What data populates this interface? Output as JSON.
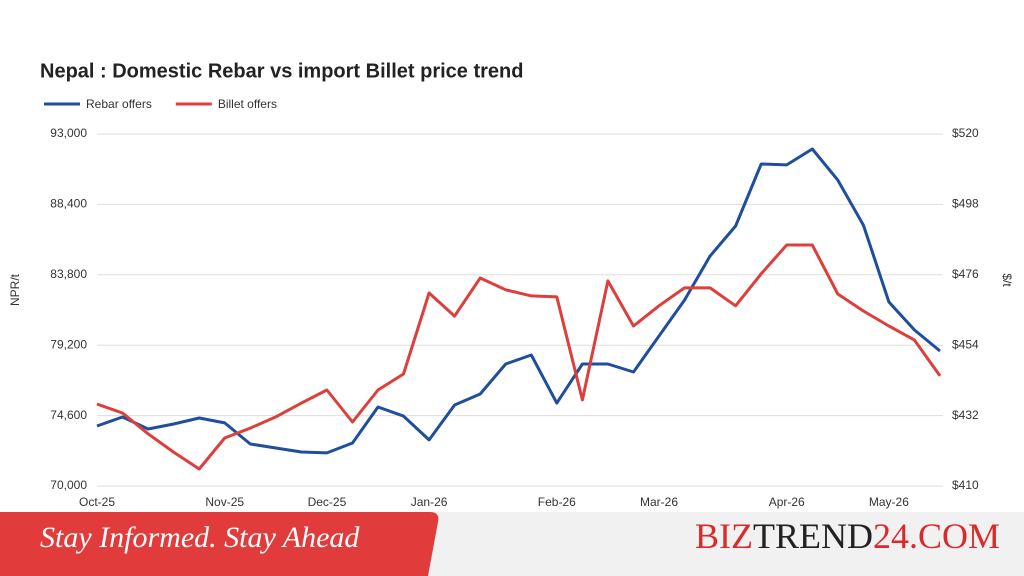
{
  "chart_data": {
    "type": "line",
    "title": "Nepal : Domestic Rebar vs import Billet price trend",
    "ylabel": "NPR/t",
    "y2label": "$/t",
    "categories": [
      "Oct-25",
      null,
      null,
      null,
      null,
      "Nov-25",
      null,
      null,
      null,
      "Dec-25",
      null,
      null,
      null,
      "Jan-26",
      null,
      null,
      null,
      null,
      "Feb-26",
      null,
      null,
      null,
      "Mar-26",
      null,
      null,
      null,
      null,
      "Apr-26",
      null,
      null,
      null,
      "May-26",
      null,
      null
    ],
    "series": [
      {
        "name": "Rebar offers",
        "color": "#1f4e9c",
        "values": [
          73920,
          74510,
          73725,
          74050,
          74440,
          74120,
          72745,
          72480,
          72220,
          72160,
          72810,
          75160,
          74570,
          73010,
          75290,
          76010,
          77970,
          78560,
          75420,
          77970,
          77970,
          77450,
          79800,
          82150,
          85030,
          86990,
          91040,
          90980,
          92020,
          89990,
          87050,
          82020,
          80190,
          78820
        ]
      },
      {
        "name": "Billet offers",
        "color": "#dc3f3c",
        "axis": "y2",
        "values": [
          435.6,
          432.8,
          426.3,
          420.6,
          415.3,
          425,
          428.1,
          431.6,
          435.9,
          440,
          430,
          440,
          445,
          470.3,
          463.1,
          475,
          471.3,
          469.4,
          469.1,
          436.9,
          474.1,
          460,
          466.3,
          471.9,
          471.9,
          466.3,
          476.3,
          485.3,
          485.3,
          470,
          464.7,
          460,
          455.6,
          444.4
        ]
      }
    ],
    "ylim": [
      70000,
      93000
    ],
    "yticks": [
      {
        "value": 70000,
        "label": "70,000"
      },
      {
        "value": 74600,
        "label": "74,600"
      },
      {
        "value": 79200,
        "label": "79,200"
      },
      {
        "value": 83800,
        "label": "83,800"
      },
      {
        "value": 88400,
        "label": "88,400"
      },
      {
        "value": 93000,
        "label": "93,000"
      }
    ],
    "y2lim": [
      410,
      520
    ],
    "y2ticks": [
      {
        "value": 410,
        "label": "$410"
      },
      {
        "value": 432,
        "label": "$432"
      },
      {
        "value": 454,
        "label": "$454"
      },
      {
        "value": 476,
        "label": "$476"
      },
      {
        "value": 498,
        "label": "$498"
      },
      {
        "value": 520,
        "label": "$520"
      }
    ],
    "grid": true,
    "legend": "top-left"
  },
  "banner": {
    "tagline": "Stay Informed. Stay Ahead",
    "brand": [
      "BIZ",
      "TREND",
      "24.COM"
    ]
  }
}
